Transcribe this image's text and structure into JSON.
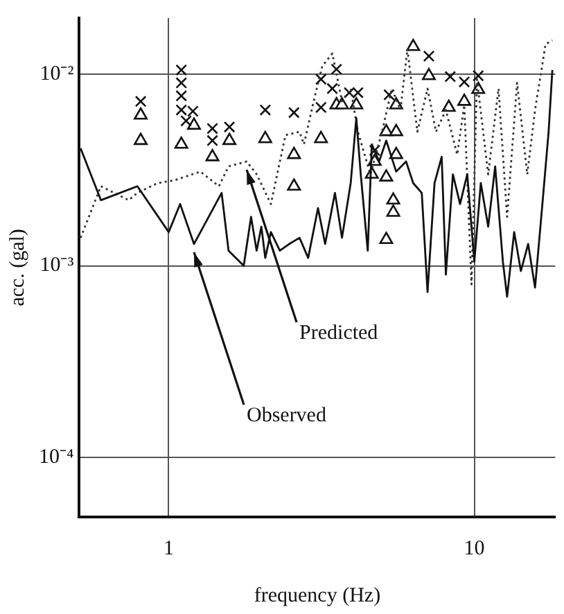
{
  "chart_data": {
    "type": "line",
    "xlabel": "frequency (Hz)",
    "ylabel": "acc. (gal)",
    "log": "xy",
    "grid": true,
    "legend": false,
    "xlim": [
      0.51,
      18.4
    ],
    "xticks": [
      1,
      10
    ],
    "ylim": [
      4.9e-05,
      0.0196
    ],
    "yticks": [
      {
        "value": 0.01,
        "label": "10⁻²"
      },
      {
        "value": 0.001,
        "label": "10⁻³"
      },
      {
        "value": 0.0001,
        "label": "10⁻⁴"
      }
    ],
    "series": [
      {
        "name": "Observed",
        "type": "line",
        "color": "#111111",
        "line_style": "solid",
        "marker": "none",
        "x": [
          0.515,
          0.6,
          0.79,
          1.0,
          1.09,
          1.21,
          1.49,
          1.57,
          1.76,
          1.86,
          1.94,
          2.01,
          2.07,
          2.16,
          2.31,
          2.48,
          2.68,
          2.86,
          3.08,
          3.25,
          3.5,
          3.69,
          3.94,
          4.11,
          4.25,
          4.48,
          4.62,
          4.88,
          5.15,
          5.55,
          5.98,
          6.31,
          6.73,
          7.03,
          7.41,
          7.82,
          8.07,
          8.51,
          8.98,
          9.48,
          10,
          10.5,
          11.1,
          11.7,
          12.4,
          12.8,
          13.5,
          14.2,
          15,
          15.8,
          16.7,
          17.5,
          18
        ],
        "values": [
          0.0041,
          0.0022,
          0.0026,
          0.0015,
          0.0021,
          0.0013,
          0.0024,
          0.0012,
          0.001,
          0.0018,
          0.0012,
          0.0016,
          0.0011,
          0.0015,
          0.0012,
          0.0013,
          0.0014,
          0.0011,
          0.002,
          0.0013,
          0.0024,
          0.0014,
          0.0027,
          0.0059,
          0.003,
          0.0012,
          0.0043,
          0.0035,
          0.0045,
          0.0031,
          0.0035,
          0.0027,
          0.0024,
          0.00073,
          0.0027,
          0.0037,
          0.0009,
          0.003,
          0.0021,
          0.003,
          0.00105,
          0.0027,
          0.0016,
          0.0033,
          0.00105,
          0.00069,
          0.0015,
          0.00094,
          0.0013,
          0.00077,
          0.0021,
          0.005,
          0.0105
        ]
      },
      {
        "name": "Predicted",
        "color": "#333333",
        "line_style": "dotted",
        "marker": "none",
        "x": [
          0.515,
          0.6,
          0.74,
          0.79,
          0.92,
          1.05,
          1.27,
          1.46,
          1.57,
          1.8,
          1.94,
          2.16,
          2.41,
          2.68,
          2.77,
          2.98,
          3.18,
          3.43,
          3.69,
          3.94,
          4.16,
          4.57,
          4.99,
          5.37,
          5.73,
          6.04,
          6.51,
          7.03,
          7.49,
          8.07,
          8.79,
          9.27,
          9.79,
          10.2,
          11.1,
          12,
          12.8,
          13.8,
          14.9,
          15.8,
          17.1,
          18
        ],
        "values": [
          0.0014,
          0.0026,
          0.0022,
          0.0024,
          0.0027,
          0.0028,
          0.0031,
          0.0026,
          0.0033,
          0.0035,
          0.003,
          0.0021,
          0.0048,
          0.005,
          0.0043,
          0.0072,
          0.011,
          0.0128,
          0.0072,
          0.0084,
          0.005,
          0.003,
          0.005,
          0.0084,
          0.0065,
          0.0135,
          0.005,
          0.0084,
          0.005,
          0.0065,
          0.0038,
          0.0069,
          0.0008,
          0.0094,
          0.003,
          0.0084,
          0.0018,
          0.009,
          0.003,
          0.0065,
          0.0143,
          0.015
        ]
      },
      {
        "type": "scatter",
        "color": "#111111",
        "marker": "cross",
        "x": [
          0.81,
          1.1,
          1.1,
          1.1,
          1.1,
          1.14,
          1.2,
          1.39,
          1.39,
          1.58,
          2.07,
          2.57,
          3.15,
          3.15,
          3.43,
          3.54,
          3.9,
          4.16,
          4.72,
          5.26,
          7.1,
          8.34,
          9.27,
          10.3
        ],
        "values": [
          0.0072,
          0.0105,
          0.009,
          0.0077,
          0.0065,
          0.0057,
          0.0064,
          0.0052,
          0.0045,
          0.0053,
          0.0065,
          0.0063,
          0.0094,
          0.0067,
          0.0084,
          0.0106,
          0.008,
          0.008,
          0.004,
          0.0078,
          0.0124,
          0.0097,
          0.0091,
          0.0098
        ]
      },
      {
        "type": "scatter",
        "color": "#111111",
        "marker": "triangle",
        "x": [
          0.81,
          0.81,
          1.1,
          1.21,
          1.39,
          1.58,
          2.07,
          2.57,
          2.57,
          3.15,
          3.54,
          3.69,
          4.11,
          4.62,
          4.72,
          5.15,
          5.15,
          5.15,
          5.43,
          5.43,
          5.55,
          5.55,
          5.55,
          6.31,
          7.1,
          8.25,
          9.27,
          10.3
        ],
        "values": [
          0.0061,
          0.0045,
          0.0043,
          0.0054,
          0.0037,
          0.0045,
          0.0046,
          0.0038,
          0.0026,
          0.0046,
          0.0069,
          0.0069,
          0.0069,
          0.003,
          0.0035,
          0.005,
          0.0029,
          0.00137,
          0.0022,
          0.0019,
          0.0069,
          0.005,
          0.0038,
          0.0139,
          0.0098,
          0.0067,
          0.0072,
          0.0083
        ]
      }
    ]
  }
}
